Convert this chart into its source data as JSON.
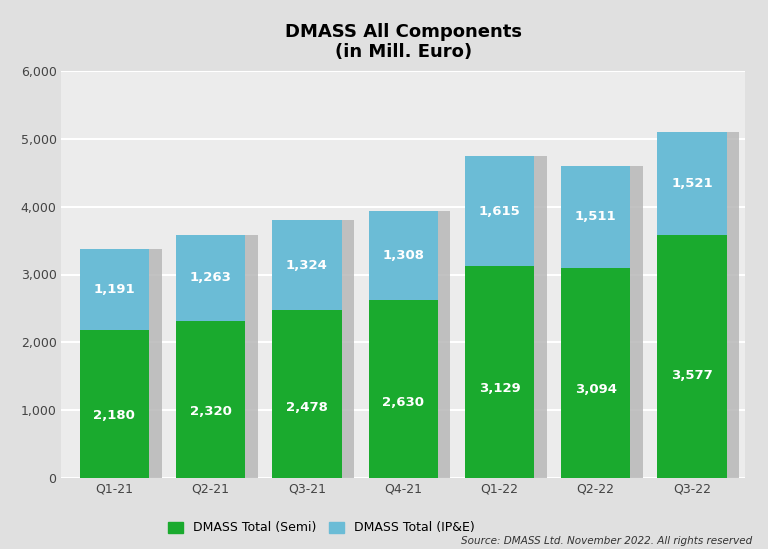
{
  "title_line1": "DMASS All Components",
  "title_line2": "(in Mill. Euro)",
  "categories": [
    "Q1-21",
    "Q2-21",
    "Q3-21",
    "Q4-21",
    "Q1-22",
    "Q2-22",
    "Q3-22"
  ],
  "semi_values": [
    2180,
    2320,
    2478,
    2630,
    3129,
    3094,
    3577
  ],
  "ipe_values": [
    1191,
    1263,
    1324,
    1308,
    1615,
    1511,
    1521
  ],
  "semi_color": "#1aaa2e",
  "ipe_color": "#6bbcd6",
  "background_color": "#e0e0e0",
  "plot_bg_color": "#ececec",
  "shadow_color": "#b8b8b8",
  "ylim": [
    0,
    6000
  ],
  "yticks": [
    0,
    1000,
    2000,
    3000,
    4000,
    5000,
    6000
  ],
  "legend_semi": "DMASS Total (Semi)",
  "legend_ipe": "DMASS Total (IP&E)",
  "source_text": "Source: DMASS Ltd. November 2022. All rights reserved",
  "bar_width": 0.72,
  "label_fontsize": 9.5,
  "title_fontsize": 13,
  "tick_fontsize": 9,
  "legend_fontsize": 9
}
